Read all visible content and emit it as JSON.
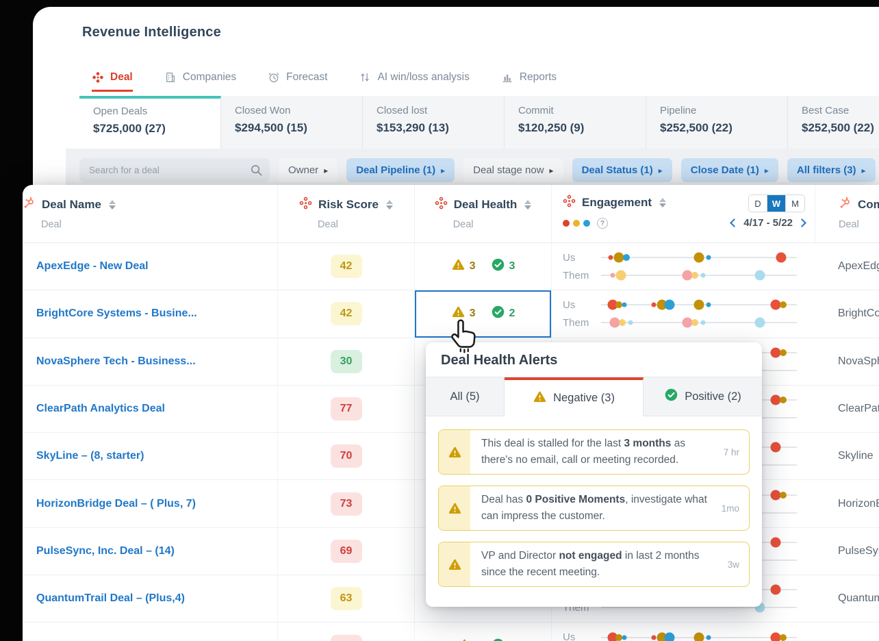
{
  "app": {
    "title": "Revenue Intelligence",
    "nav_tabs": [
      {
        "label": "Deal",
        "icon": "deal-icon",
        "active": true
      },
      {
        "label": "Companies",
        "icon": "companies-icon",
        "active": false
      },
      {
        "label": "Forecast",
        "icon": "forecast-icon",
        "active": false
      },
      {
        "label": "AI win/loss analysis",
        "icon": "winloss-icon",
        "active": false
      },
      {
        "label": "Reports",
        "icon": "reports-icon",
        "active": false
      }
    ]
  },
  "summary_cards": [
    {
      "label": "Open Deals",
      "value": "$725,000 (27)",
      "active": true
    },
    {
      "label": "Closed Won",
      "value": "$294,500 (15)",
      "active": false
    },
    {
      "label": "Closed lost",
      "value": "$153,290 (13)",
      "active": false
    },
    {
      "label": "Commit",
      "value": "$120,250 (9)",
      "active": false
    },
    {
      "label": "Pipeline",
      "value": "$252,500 (22)",
      "active": false
    },
    {
      "label": "Best Case",
      "value": "$252,500 (22)",
      "active": false
    }
  ],
  "filter_bar": {
    "search_placeholder": "Search for a deal",
    "filters": [
      {
        "label": "Owner",
        "active": false
      },
      {
        "label": "Deal Pipeline (1)",
        "active": true
      },
      {
        "label": "Deal stage now",
        "active": false
      },
      {
        "label": "Deal Status (1)",
        "active": true
      },
      {
        "label": "Close Date (1)",
        "active": true
      },
      {
        "label": "All filters (3)",
        "active": true
      }
    ]
  },
  "table": {
    "columns": {
      "deal_name": {
        "label": "Deal Name",
        "sublabel": "Deal"
      },
      "risk_score": {
        "label": "Risk Score",
        "sublabel": "Deal"
      },
      "deal_health": {
        "label": "Deal Health",
        "sublabel": "Deal"
      },
      "engagement": {
        "label": "Engagement",
        "help": "?",
        "period_options": [
          "D",
          "W",
          "M"
        ],
        "period_active": "W",
        "date_range": "4/17 - 5/22",
        "us_label": "Us",
        "them_label": "Them"
      },
      "company": {
        "label": "Comp",
        "sublabel": "Deal"
      }
    },
    "dot_colors": {
      "red": "#e8503a",
      "olive": "#c29108",
      "blue": "#2b9fd8",
      "pink": "#f5a3a3",
      "yellow": "#f5cf72",
      "lightblue": "#a9dcee"
    },
    "dot_sizes": {
      "s": 7,
      "m": 10,
      "l": 15
    },
    "rows": [
      {
        "deal_name": "ApexEdge - New Deal",
        "risk_score": "42",
        "risk_level": "medium",
        "health": {
          "negative": "3",
          "positive": "3",
          "show": true,
          "selected": false
        },
        "company": "ApexEdge",
        "engagement": {
          "us": [
            [
              5,
              "red",
              "s"
            ],
            [
              9,
              "olive",
              "l"
            ],
            [
              13,
              "blue",
              "m"
            ],
            [
              50,
              "olive",
              "l"
            ],
            [
              55,
              "blue",
              "s"
            ],
            [
              92,
              "red",
              "l"
            ]
          ],
          "them": [
            [
              6,
              "pink",
              "s"
            ],
            [
              10,
              "yellow",
              "l"
            ],
            [
              44,
              "pink",
              "l"
            ],
            [
              48,
              "yellow",
              "m"
            ],
            [
              52,
              "lightblue",
              "s"
            ],
            [
              81,
              "lightblue",
              "l"
            ]
          ]
        }
      },
      {
        "deal_name": "BrightCore Systems - Busine...",
        "risk_score": "42",
        "risk_level": "medium",
        "health": {
          "negative": "3",
          "positive": "2",
          "show": true,
          "selected": true
        },
        "company": "BrightCor",
        "engagement": {
          "us": [
            [
              6,
              "red",
              "l"
            ],
            [
              9,
              "olive",
              "m"
            ],
            [
              12,
              "blue",
              "s"
            ],
            [
              27,
              "red",
              "s"
            ],
            [
              31,
              "olive",
              "l"
            ],
            [
              35,
              "blue",
              "l"
            ],
            [
              50,
              "olive",
              "l"
            ],
            [
              55,
              "blue",
              "s"
            ],
            [
              89,
              "red",
              "l"
            ],
            [
              93,
              "olive",
              "m"
            ]
          ],
          "them": [
            [
              7,
              "pink",
              "l"
            ],
            [
              11,
              "yellow",
              "m"
            ],
            [
              15,
              "lightblue",
              "s"
            ],
            [
              44,
              "pink",
              "l"
            ],
            [
              48,
              "yellow",
              "m"
            ],
            [
              52,
              "lightblue",
              "s"
            ],
            [
              81,
              "lightblue",
              "l"
            ]
          ]
        }
      },
      {
        "deal_name": "NovaSphere Tech - Business...",
        "risk_score": "30",
        "risk_level": "low",
        "health": {
          "negative": "",
          "positive": "",
          "show": false,
          "selected": false
        },
        "company": "NovaSphe",
        "engagement": {
          "us": [
            [
              89,
              "red",
              "l"
            ],
            [
              93,
              "olive",
              "m"
            ]
          ],
          "them": []
        }
      },
      {
        "deal_name": "ClearPath Analytics Deal",
        "risk_score": "77",
        "risk_level": "high",
        "health": {
          "negative": "",
          "positive": "",
          "show": false,
          "selected": false
        },
        "company": "ClearPath",
        "engagement": {
          "us": [
            [
              89,
              "red",
              "l"
            ],
            [
              93,
              "olive",
              "m"
            ]
          ],
          "them": []
        }
      },
      {
        "deal_name": "SkyLine – (8, starter)",
        "risk_score": "70",
        "risk_level": "high",
        "health": {
          "negative": "",
          "positive": "",
          "show": false,
          "selected": false
        },
        "company": "Skyline",
        "engagement": {
          "us": [
            [
              89,
              "red",
              "l"
            ]
          ],
          "them": []
        }
      },
      {
        "deal_name": "HorizonBridge Deal – ( Plus, 7)",
        "risk_score": "73",
        "risk_level": "high",
        "health": {
          "negative": "",
          "positive": "",
          "show": false,
          "selected": false
        },
        "company": "HorizonB",
        "engagement": {
          "us": [
            [
              89,
              "red",
              "l"
            ],
            [
              93,
              "olive",
              "m"
            ]
          ],
          "them": []
        }
      },
      {
        "deal_name": "PulseSync, Inc. Deal – (14)",
        "risk_score": "69",
        "risk_level": "high",
        "health": {
          "negative": "",
          "positive": "",
          "show": false,
          "selected": false
        },
        "company": "PulseSync",
        "engagement": {
          "us": [
            [
              89,
              "red",
              "l"
            ]
          ],
          "them": []
        }
      },
      {
        "deal_name": "QuantumTrail Deal – (Plus,4)",
        "risk_score": "63",
        "risk_level": "medium",
        "health": {
          "negative": "",
          "positive": "",
          "show": false,
          "selected": false
        },
        "company": "Quantum",
        "engagement": {
          "us": [
            [
              89,
              "red",
              "l"
            ]
          ],
          "them": [
            [
              81,
              "lightblue",
              "l"
            ]
          ]
        }
      },
      {
        "deal_name": "",
        "risk_score": "",
        "risk_level": "high",
        "health": {
          "negative": "",
          "positive": "",
          "show": true,
          "selected": false
        },
        "company": "",
        "engagement": {
          "us": [
            [
              6,
              "red",
              "l"
            ],
            [
              9,
              "olive",
              "m"
            ],
            [
              12,
              "blue",
              "s"
            ],
            [
              27,
              "red",
              "s"
            ],
            [
              31,
              "olive",
              "l"
            ],
            [
              35,
              "blue",
              "l"
            ],
            [
              50,
              "olive",
              "l"
            ],
            [
              55,
              "blue",
              "s"
            ],
            [
              89,
              "red",
              "l"
            ],
            [
              93,
              "olive",
              "m"
            ]
          ],
          "them": []
        }
      }
    ]
  },
  "popup": {
    "title": "Deal Health Alerts",
    "tabs": [
      {
        "label": "All (5)",
        "icon": null,
        "active": false
      },
      {
        "label": "Negative (3)",
        "icon": "warning-icon",
        "active": true
      },
      {
        "label": "Positive (2)",
        "icon": "check-icon",
        "active": false
      }
    ],
    "alerts": [
      {
        "segments": [
          {
            "text": "This deal is stalled for the last ",
            "bold": false
          },
          {
            "text": "3 months",
            "bold": true
          },
          {
            "text": " as there's no email, call or meeting recorded.",
            "bold": false
          }
        ],
        "age": "7 hr"
      },
      {
        "segments": [
          {
            "text": "Deal has ",
            "bold": false
          },
          {
            "text": "0 Positive Moments",
            "bold": true
          },
          {
            "text": ", investigate what can impress the customer.",
            "bold": false
          }
        ],
        "age": "1mo"
      },
      {
        "segments": [
          {
            "text": "VP and Director ",
            "bold": false
          },
          {
            "text": "not engaged",
            "bold": true
          },
          {
            "text": " in last 2 months since the recent meeting.",
            "bold": false
          }
        ],
        "age": "3w"
      }
    ]
  },
  "colors": {
    "accent_red": "#e0412f",
    "link_blue": "#2178c8",
    "teal": "#45c4b8",
    "warning_gold": "#cf9e04",
    "positive_green": "#27a865",
    "filter_blue_bg": "#c9dff3"
  }
}
